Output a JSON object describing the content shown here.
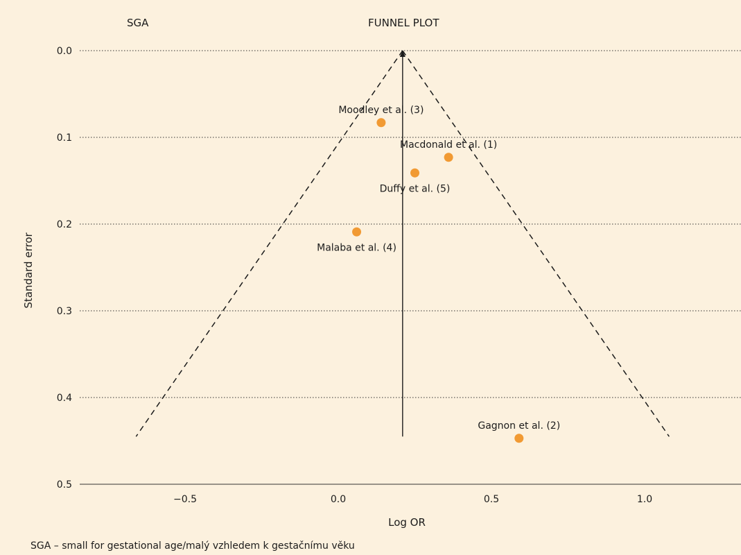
{
  "header": {
    "panel_label": "SGA",
    "title": "FUNNEL PLOT"
  },
  "footnote": "SGA – small for gestational age/malý vzhledem k gestačnímu věku",
  "chart_data": {
    "type": "scatter",
    "title": "FUNNEL PLOT",
    "xlabel": "Log OR",
    "ylabel": "Standard error",
    "xlim": [
      -1.0,
      1.3
    ],
    "ylim": [
      0.0,
      0.5
    ],
    "y_inverted": true,
    "x_ticks": [
      -0.5,
      0.0,
      0.5,
      1.0
    ],
    "x_tick_labels": [
      "−0.5",
      "0.0",
      "0.5",
      "1.0"
    ],
    "y_ticks": [
      0.0,
      0.1,
      0.2,
      0.3,
      0.4,
      0.5
    ],
    "y_tick_labels": [
      "0.0",
      "0.1",
      "0.2",
      "0.3",
      "0.4",
      "0.5"
    ],
    "grid": "horizontal dotted",
    "pooled_estimate": 0.21,
    "funnel": {
      "apex": [
        0.21,
        0.0
      ],
      "left_end": [
        -0.66,
        0.445
      ],
      "right_end": [
        1.08,
        0.445
      ]
    },
    "point_color": "#f19a33",
    "points": [
      {
        "label": "Moodley et al. (3)",
        "x": 0.14,
        "y": 0.083,
        "label_side": "above"
      },
      {
        "label": "Macdonald et al. (1)",
        "x": 0.36,
        "y": 0.123,
        "label_side": "above"
      },
      {
        "label": "Duffy et al. (5)",
        "x": 0.25,
        "y": 0.141,
        "label_side": "below"
      },
      {
        "label": "Malaba et al. (4)",
        "x": 0.06,
        "y": 0.209,
        "label_side": "below"
      },
      {
        "label": "Gagnon et al. (2)",
        "x": 0.59,
        "y": 0.447,
        "label_side": "above"
      }
    ]
  }
}
